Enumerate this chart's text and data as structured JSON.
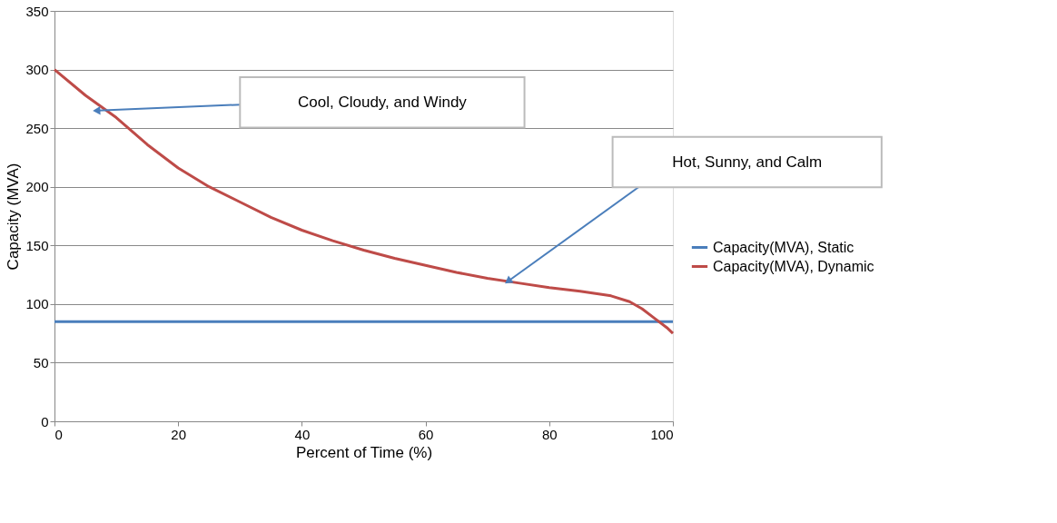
{
  "chart_data": {
    "type": "line",
    "xlabel": "Percent of Time (%)",
    "ylabel": "Capacity (MVA)",
    "xlim": [
      0,
      100
    ],
    "xticks": [
      0,
      20,
      40,
      60,
      80,
      100
    ],
    "ylim": [
      0,
      350
    ],
    "yticks": [
      0,
      50,
      100,
      150,
      200,
      250,
      300,
      350
    ],
    "grid": "y",
    "legend": "right",
    "marker": "none",
    "line_style": "solid",
    "series": [
      {
        "name": "Capacity(MVA), Static",
        "color": "#4a7ebb",
        "x": [
          0,
          100
        ],
        "values": [
          85,
          85
        ]
      },
      {
        "name": "Capacity(MVA), Dynamic",
        "color": "#be4b48",
        "x": [
          0,
          5,
          10,
          15,
          20,
          25,
          30,
          35,
          40,
          45,
          50,
          55,
          60,
          65,
          70,
          75,
          80,
          85,
          90,
          93,
          95,
          97,
          99,
          100
        ],
        "values": [
          300,
          278,
          259,
          236,
          216,
          200,
          187,
          174,
          163,
          154,
          146,
          139,
          133,
          127,
          122,
          118,
          114,
          111,
          107,
          102,
          96,
          88,
          80,
          75
        ]
      }
    ],
    "annotations": [
      {
        "text": "Cool, Cloudy, and Windy",
        "x": 7,
        "y": 265
      },
      {
        "text": "Hot, Sunny, and Calm",
        "x": 73.5,
        "y": 120
      }
    ]
  }
}
